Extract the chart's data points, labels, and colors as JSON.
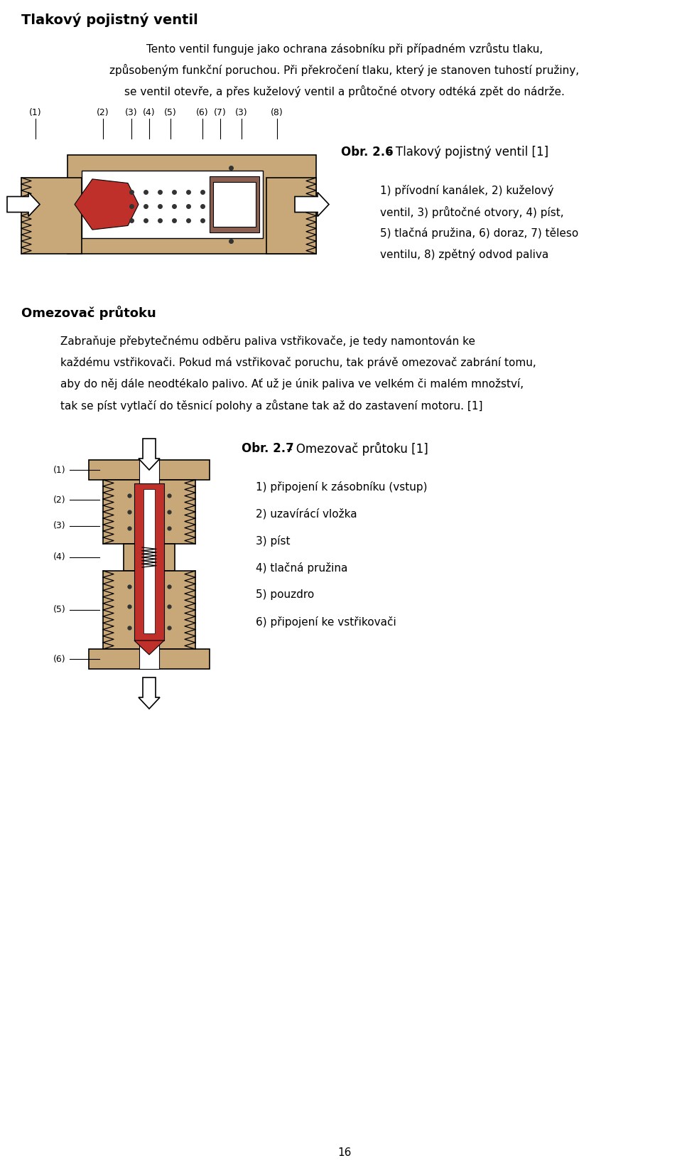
{
  "title": "Tlakový pojistný ventil",
  "para1_lines": [
    "Tento ventil funguje jako ochrana zásobníku při případném vzrůstu tlaku,",
    "způsobeným funkční poruchou. Při překročení tlaku, který je stanoven tuhostí pružiny,",
    "se ventil otevře, a přes kuželový ventil a průtočné otvory odtéká zpět do nádrže."
  ],
  "fig1_label_texts": [
    "(1)",
    "(2)",
    "(3)",
    "(4)",
    "(5)",
    "(6)",
    "(7)",
    "(3)",
    "(8)"
  ],
  "fig1_caption_bold": "Obr. 2.6",
  "fig1_caption_rest": " – Tlakový pojistný ventil [1]",
  "fig1_desc_lines": [
    "1) přívodní kanálek, 2) kuželový",
    "ventil, 3) průtočné otvory, 4) píst,",
    "5) tlačná pružina, 6) doraz, 7) těleso",
    "ventilu, 8) zpětný odvod paliva"
  ],
  "section2_title": "Omezovač průtoku",
  "para2_lines": [
    "Zabraňuje přebytečnému odběru paliva vstřikovače, je tedy namontován ke",
    "každému vstřikovači. Pokud má vstřikovač poruchu, tak právě omezovač zabrání tomu,",
    "aby do něj dále neodtékalo palivo. Ať už je únik paliva ve velkém či malém množství,",
    "tak se píst vytlačí do těsnicí polohy a zůstane tak až do zastavení motoru. [1]"
  ],
  "fig2_caption_bold": "Obr. 2.7",
  "fig2_caption_rest": " – Omezovač průtoku [1]",
  "fig2_label_texts": [
    "(1)",
    "(2)",
    "(3)",
    "(4)",
    "(5)",
    "(6)"
  ],
  "fig2_desc_lines": [
    "1) připojení k zásobníku (vstup)",
    "2) uzavírácí vložka",
    "3) píst",
    "4) tlačná pružina",
    "5) pouzdro",
    "6) připojení ke vstřikovači"
  ],
  "page_number": "16",
  "bg_color": "#ffffff",
  "text_color": "#1a1a1a",
  "tan": "#c8a878",
  "tan_dark": "#b89060",
  "red": "#c0302a",
  "brown": "#8b6050",
  "white": "#ffffff",
  "black": "#000000"
}
